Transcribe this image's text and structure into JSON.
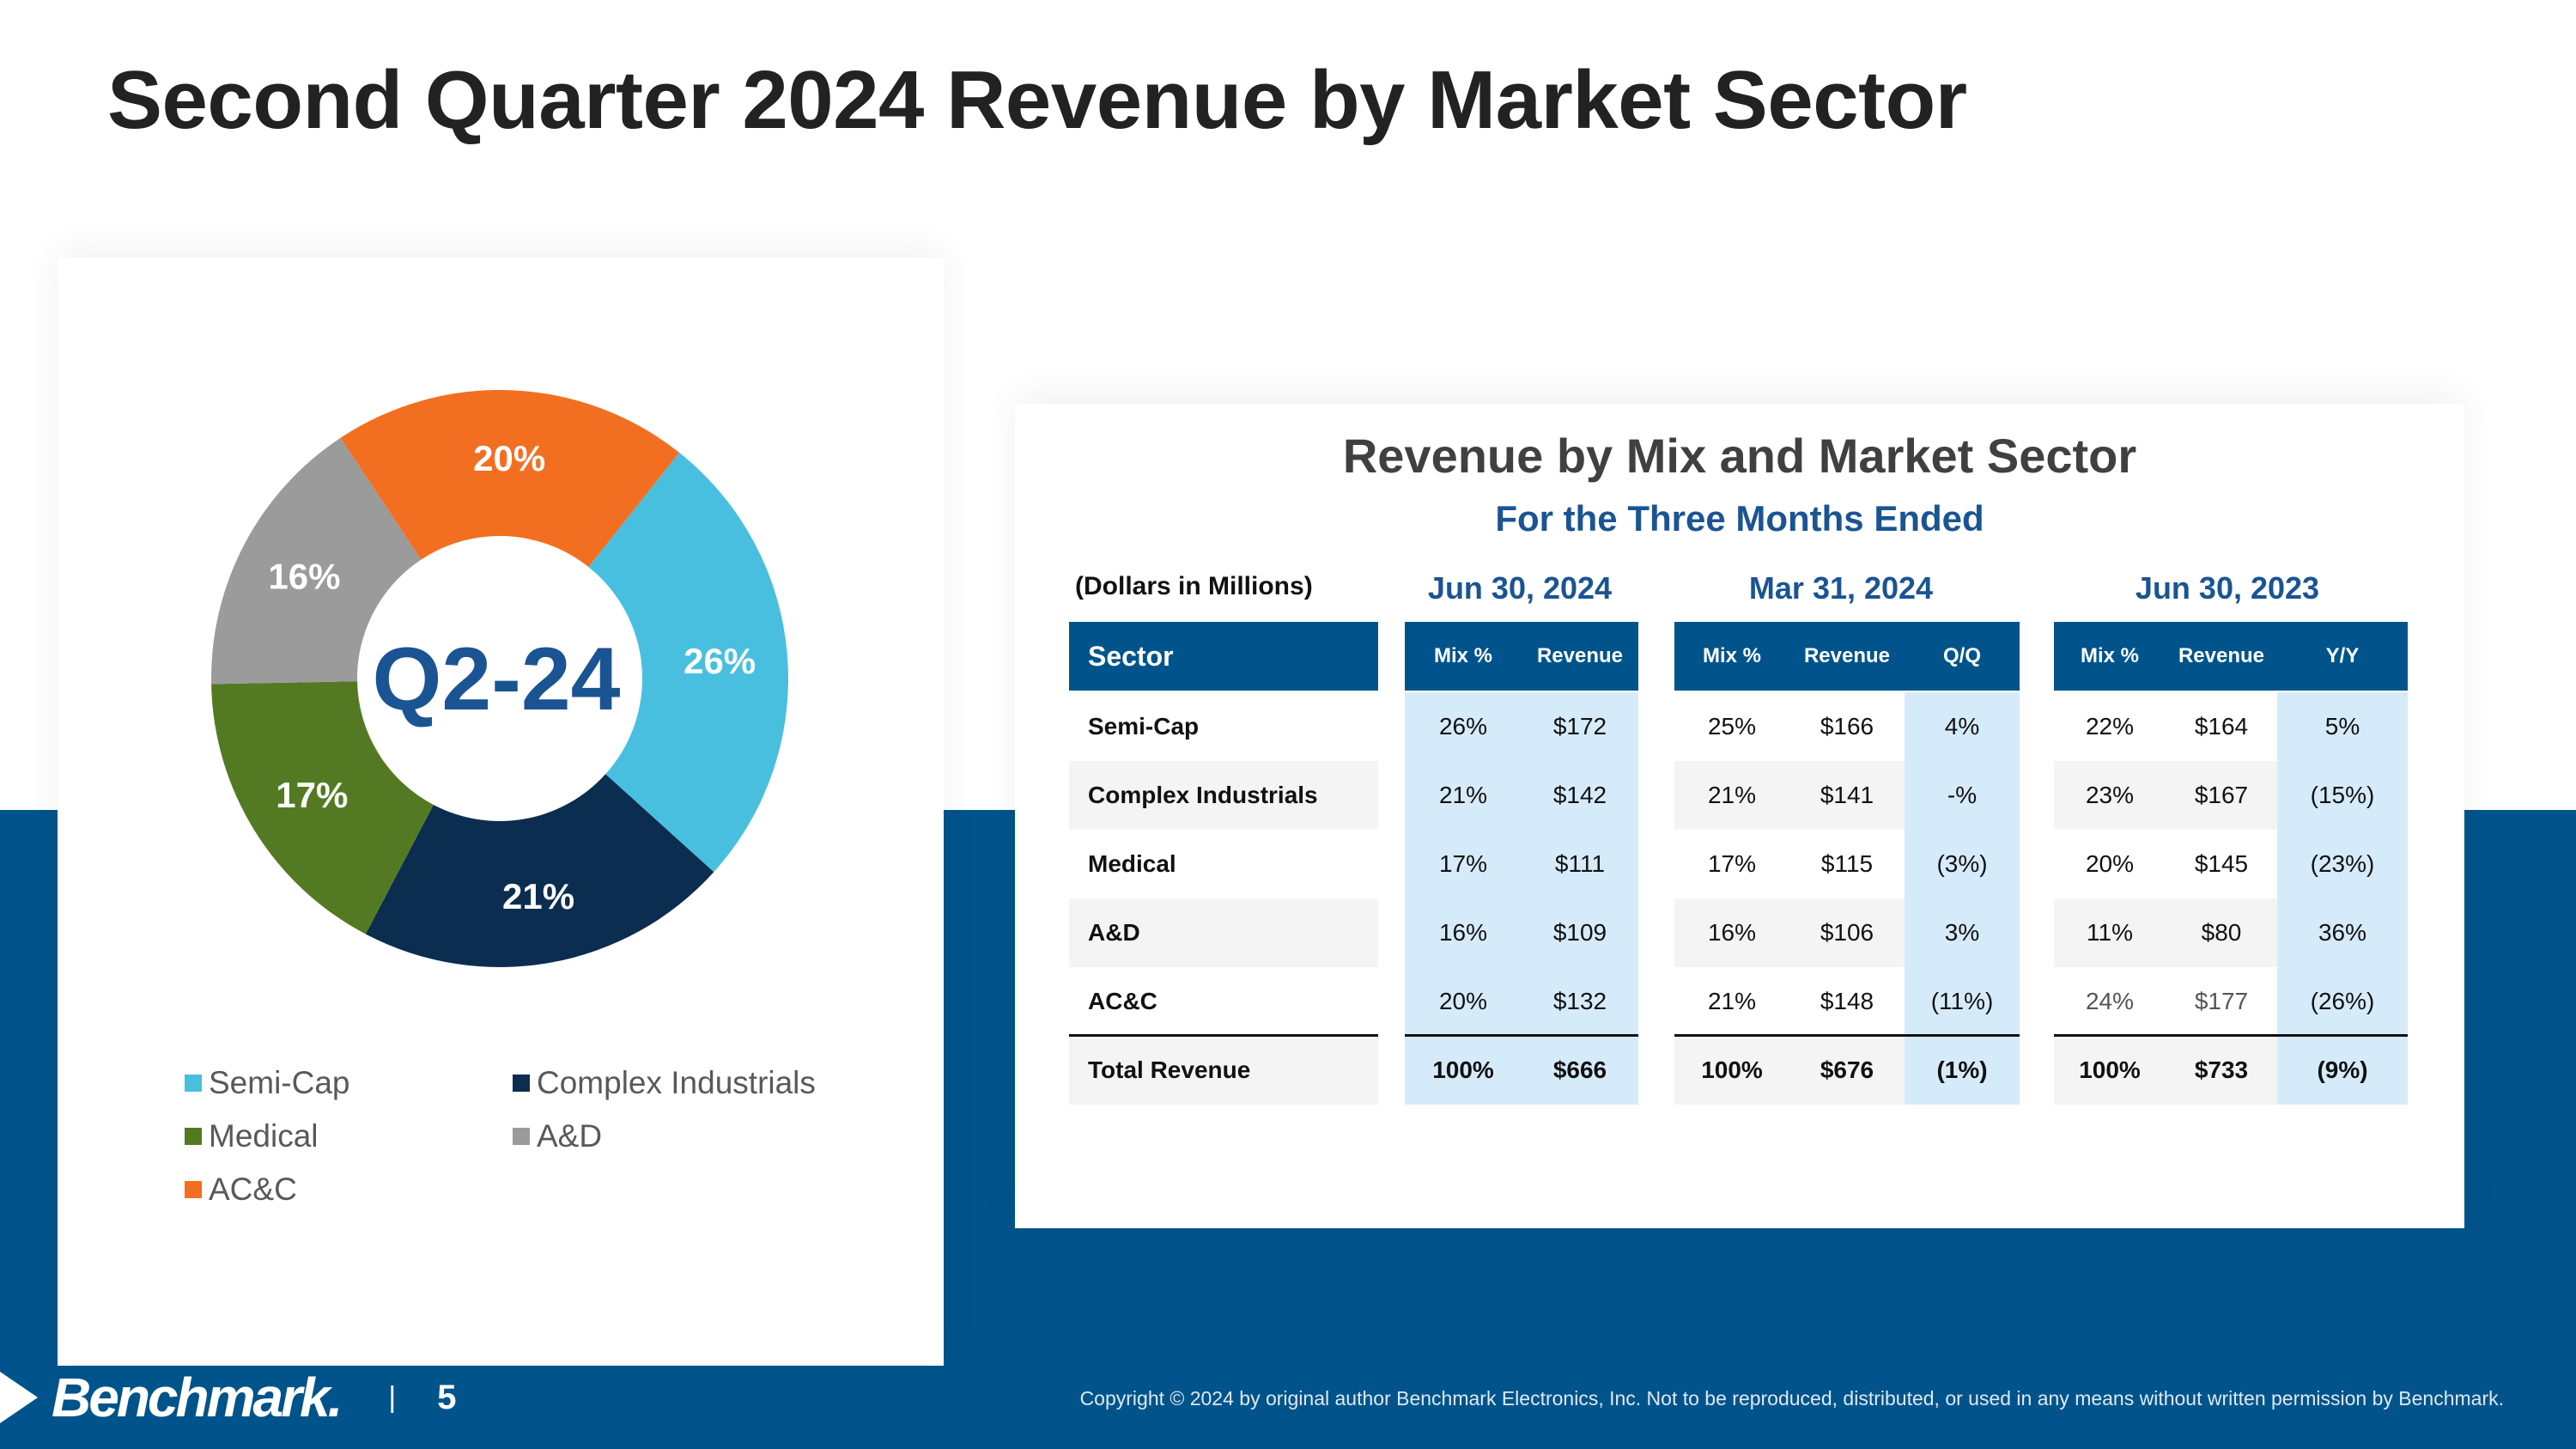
{
  "slide": {
    "title": "Second Quarter 2024 Revenue by Market Sector",
    "page_number": "5",
    "brand": "Benchmark.",
    "separator": "|",
    "copyright": "Copyright © 2024 by original author Benchmark Electronics, Inc. Not to be reproduced, distributed, or used in any means without written permission by Benchmark."
  },
  "colors": {
    "band": "#00548b",
    "semi_cap": "#49bfe0",
    "complex_industrials": "#0b2d4f",
    "medical": "#537a23",
    "ad": "#9b9b9b",
    "acc": "#f26f22",
    "center_label": "#1a5493"
  },
  "chart_data": {
    "type": "pie",
    "center_label": "Q2-24",
    "slices": [
      {
        "name": "Semi-Cap",
        "value": 26,
        "label": "26%"
      },
      {
        "name": "Complex Industrials",
        "value": 21,
        "label": "21%"
      },
      {
        "name": "Medical",
        "value": 17,
        "label": "17%"
      },
      {
        "name": "A&D",
        "value": 16,
        "label": "16%"
      },
      {
        "name": "AC&C",
        "value": 20,
        "label": "20%"
      }
    ],
    "legend": [
      "Semi-Cap",
      "Complex Industrials",
      "Medical",
      "A&D",
      "AC&C"
    ]
  },
  "table": {
    "title": "Revenue by Mix and Market Sector",
    "subtitle": "For the Three Months Ended",
    "units_note": "(Dollars in Millions)",
    "periods": [
      "Jun 30, 2024",
      "Mar 31, 2024",
      "Jun 30, 2023"
    ],
    "headers": {
      "sector": "Sector",
      "p1": [
        "Mix %",
        "Revenue"
      ],
      "p2": [
        "Mix %",
        "Revenue",
        "Q/Q"
      ],
      "p3": [
        "Mix %",
        "Revenue",
        "Y/Y"
      ]
    },
    "rows": [
      {
        "sector": "Semi-Cap",
        "cells": [
          "26%",
          "$172",
          "25%",
          "$166",
          "4%",
          "22%",
          "$164",
          "5%"
        ]
      },
      {
        "sector": "Complex Industrials",
        "cells": [
          "21%",
          "$142",
          "21%",
          "$141",
          "-%",
          "23%",
          "$167",
          "(15%)"
        ]
      },
      {
        "sector": "Medical",
        "cells": [
          "17%",
          "$111",
          "17%",
          "$115",
          "(3%)",
          "20%",
          "$145",
          "(23%)"
        ]
      },
      {
        "sector": "A&D",
        "cells": [
          "16%",
          "$109",
          "16%",
          "$106",
          "3%",
          "11%",
          "$80",
          "36%"
        ]
      },
      {
        "sector": "AC&C",
        "cells": [
          "20%",
          "$132",
          "21%",
          "$148",
          "(11%)",
          "24%",
          "$177",
          "(26%)"
        ]
      },
      {
        "sector": "Total Revenue",
        "cells": [
          "100%",
          "$666",
          "100%",
          "$676",
          "(1%)",
          "100%",
          "$733",
          "(9%)"
        ]
      }
    ]
  }
}
